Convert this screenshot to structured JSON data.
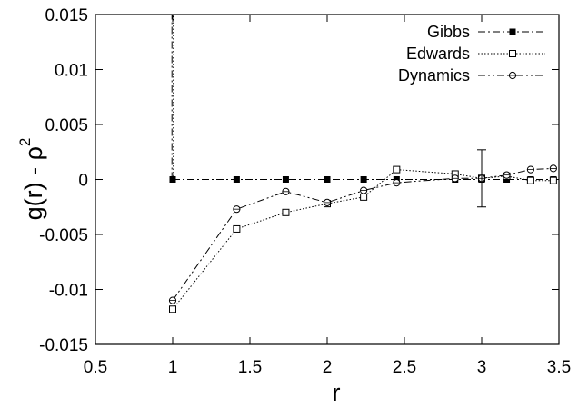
{
  "chart_data": {
    "type": "line",
    "xlabel": "r",
    "ylabel": "g(r) - ρ",
    "ylabel_superscript": "2",
    "xlim": [
      0.5,
      3.5
    ],
    "ylim": [
      -0.015,
      0.015
    ],
    "xticks": [
      0.5,
      1,
      1.5,
      2,
      2.5,
      3,
      3.5
    ],
    "yticks": [
      -0.015,
      -0.01,
      -0.005,
      0,
      0.005,
      0.01,
      0.015
    ],
    "xtick_labels": [
      "0.5",
      "1",
      "1.5",
      "2",
      "2.5",
      "3",
      "3.5"
    ],
    "ytick_labels": [
      "-0.015",
      "-0.01",
      "-0.005",
      "0",
      "0.005",
      "0.01",
      "0.015"
    ],
    "grid": false,
    "legend_position": "top-right",
    "series": [
      {
        "name": "Gibbs",
        "marker": "filled-square",
        "line_style": "dash-dot",
        "x": [
          1,
          1.414,
          1.732,
          2,
          2.236,
          2.449,
          2.828,
          3,
          3.162,
          3.317,
          3.464
        ],
        "y": [
          0,
          0,
          0,
          0,
          0,
          0,
          0,
          0,
          0,
          0,
          0
        ]
      },
      {
        "name": "Edwards",
        "marker": "open-square",
        "line_style": "dotted",
        "x": [
          1,
          1.414,
          1.732,
          2,
          2.236,
          2.449,
          2.828,
          3,
          3.162,
          3.317,
          3.464
        ],
        "y": [
          -0.0118,
          -0.0045,
          -0.003,
          -0.0022,
          -0.0016,
          0.0009,
          0.0005,
          0.0001,
          0.0003,
          -0.0001,
          -0.0001
        ]
      },
      {
        "name": "Dynamics",
        "marker": "open-circle-cross",
        "line_style": "dash-dot-dot",
        "x": [
          1,
          1.414,
          1.732,
          2,
          2.236,
          2.449,
          2.828,
          3,
          3.162,
          3.317,
          3.464
        ],
        "y": [
          -0.011,
          -0.0027,
          -0.0011,
          -0.0021,
          -0.001,
          -0.0003,
          0.0001,
          0.0001,
          0.0004,
          0.0009,
          0.001
        ]
      }
    ],
    "error_bar": {
      "x": 3,
      "y": 0.0001,
      "low": -0.0025,
      "high": 0.0027
    },
    "spike": {
      "x": 1,
      "from": 0,
      "to": 0.015
    }
  }
}
